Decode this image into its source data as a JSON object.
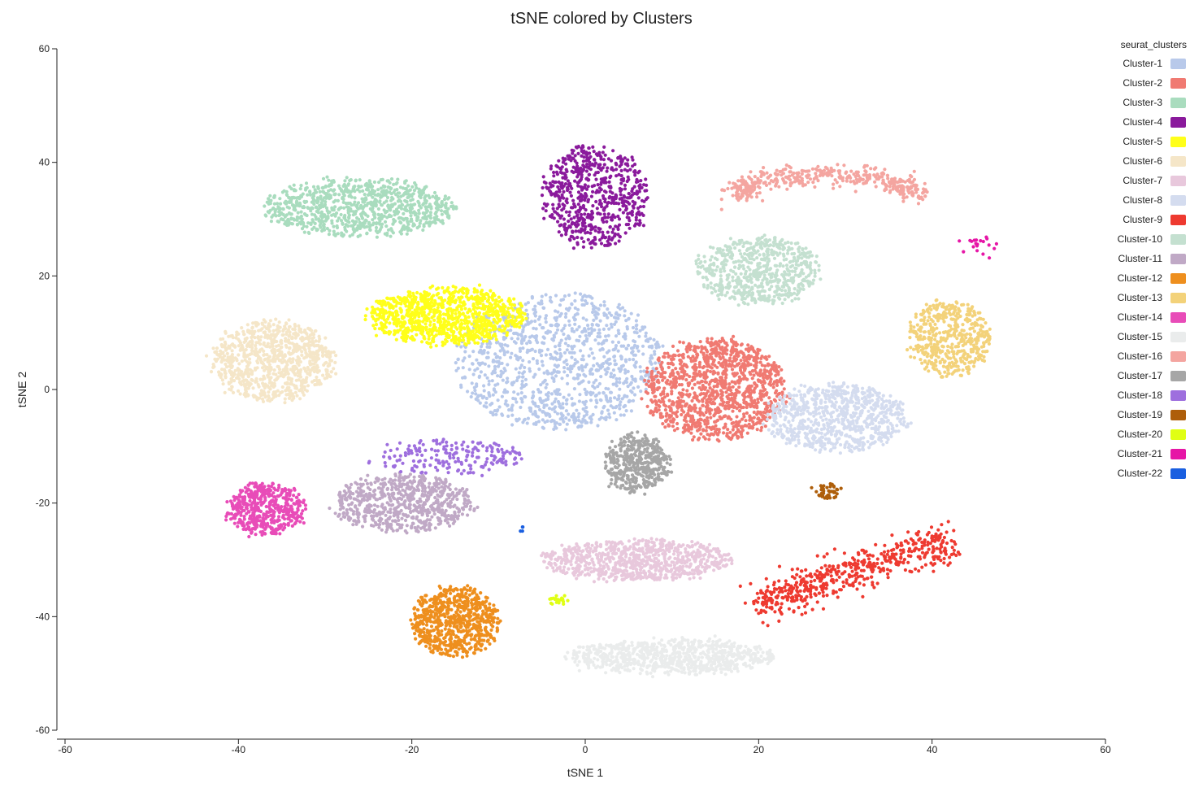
{
  "chart_data": {
    "type": "scatter",
    "title": "tSNE colored by Clusters",
    "xlabel": "tSNE 1",
    "ylabel": "tSNE 2",
    "xlim": [
      -60,
      60
    ],
    "ylim": [
      -60,
      60
    ],
    "x_ticks": [
      -60,
      -40,
      -20,
      0,
      20,
      40,
      60
    ],
    "y_ticks": [
      -60,
      -40,
      -20,
      0,
      20,
      40,
      60
    ],
    "grid": false,
    "legend": {
      "title": "seurat_clusters",
      "position": "right"
    },
    "series": [
      {
        "name": "Cluster-1",
        "color": "#b8c9ea",
        "center": [
          -3,
          5
        ],
        "spread": [
          12,
          12
        ],
        "count": 1100,
        "shape": "blob"
      },
      {
        "name": "Cluster-2",
        "color": "#f07a72",
        "center": [
          15,
          0
        ],
        "spread": [
          8,
          9
        ],
        "count": 1200,
        "shape": "blob"
      },
      {
        "name": "Cluster-3",
        "color": "#a9dcbe",
        "center": [
          -26,
          32
        ],
        "spread": [
          11,
          5
        ],
        "count": 900,
        "shape": "blob"
      },
      {
        "name": "Cluster-4",
        "color": "#8a1a9c",
        "center": [
          1,
          34
        ],
        "spread": [
          6,
          9
        ],
        "count": 650,
        "shape": "blob"
      },
      {
        "name": "Cluster-5",
        "color": "#ffff1a",
        "center": [
          -16,
          13
        ],
        "spread": [
          9,
          5
        ],
        "count": 1000,
        "shape": "blob"
      },
      {
        "name": "Cluster-6",
        "color": "#f5e6c8",
        "center": [
          -36,
          5
        ],
        "spread": [
          7,
          7
        ],
        "count": 900,
        "shape": "blob"
      },
      {
        "name": "Cluster-7",
        "color": "#e8c8dc",
        "center": [
          6,
          -30
        ],
        "spread": [
          11,
          3.5
        ],
        "count": 800,
        "shape": "blob"
      },
      {
        "name": "Cluster-8",
        "color": "#d4dcef",
        "center": [
          29,
          -5
        ],
        "spread": [
          8,
          6
        ],
        "count": 800,
        "shape": "blob"
      },
      {
        "name": "Cluster-9",
        "color": "#ee3a30",
        "center": [
          31,
          -32
        ],
        "spread": [
          8,
          4
        ],
        "count": 550,
        "shape": "band"
      },
      {
        "name": "Cluster-10",
        "color": "#c4e0d0",
        "center": [
          20,
          21
        ],
        "spread": [
          7,
          6
        ],
        "count": 650,
        "shape": "blob"
      },
      {
        "name": "Cluster-11",
        "color": "#c0a9c6",
        "center": [
          -21,
          -20
        ],
        "spread": [
          8,
          5
        ],
        "count": 700,
        "shape": "blob"
      },
      {
        "name": "Cluster-12",
        "color": "#ee8f1e",
        "center": [
          -15,
          -41
        ],
        "spread": [
          5,
          6
        ],
        "count": 700,
        "shape": "blob"
      },
      {
        "name": "Cluster-13",
        "color": "#f3d27a",
        "center": [
          42,
          9
        ],
        "spread": [
          4.5,
          7
        ],
        "count": 500,
        "shape": "blob"
      },
      {
        "name": "Cluster-14",
        "color": "#e84cb8",
        "center": [
          -37,
          -21
        ],
        "spread": [
          4.5,
          4.5
        ],
        "count": 500,
        "shape": "blob"
      },
      {
        "name": "Cluster-15",
        "color": "#eaecec",
        "center": [
          10,
          -47
        ],
        "spread": [
          12,
          3
        ],
        "count": 800,
        "shape": "blob"
      },
      {
        "name": "Cluster-16",
        "color": "#f4a5a0",
        "center": [
          28,
          36
        ],
        "spread": [
          10,
          3
        ],
        "count": 450,
        "shape": "arc"
      },
      {
        "name": "Cluster-17",
        "color": "#a6a6a6",
        "center": [
          6,
          -13
        ],
        "spread": [
          3.5,
          5
        ],
        "count": 450,
        "shape": "blob"
      },
      {
        "name": "Cluster-18",
        "color": "#9e6fde",
        "center": [
          -16,
          -12
        ],
        "spread": [
          9,
          3
        ],
        "count": 200,
        "shape": "blob"
      },
      {
        "name": "Cluster-19",
        "color": "#ae5e0a",
        "center": [
          28,
          -18
        ],
        "spread": [
          1.6,
          1.1
        ],
        "count": 45,
        "shape": "blob"
      },
      {
        "name": "Cluster-20",
        "color": "#e0ff14",
        "center": [
          -3,
          -37
        ],
        "spread": [
          1.3,
          0.7
        ],
        "count": 25,
        "shape": "blob"
      },
      {
        "name": "Cluster-21",
        "color": "#e616a6",
        "center": [
          45,
          25
        ],
        "spread": [
          2.5,
          2.5
        ],
        "count": 20,
        "shape": "blob"
      },
      {
        "name": "Cluster-22",
        "color": "#1a5fe0",
        "center": [
          -7,
          -24.5
        ],
        "spread": [
          0.6,
          0.3
        ],
        "count": 4,
        "shape": "blob"
      }
    ]
  }
}
